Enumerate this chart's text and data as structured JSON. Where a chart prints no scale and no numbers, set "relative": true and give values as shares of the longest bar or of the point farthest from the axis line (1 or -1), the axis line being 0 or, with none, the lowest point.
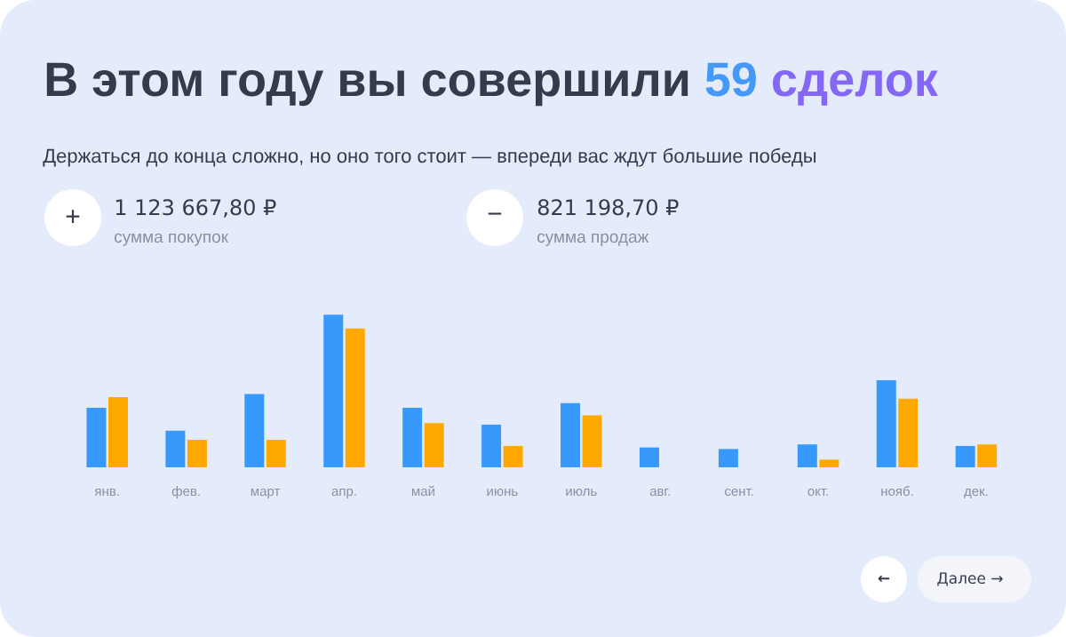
{
  "chart_data": {
    "type": "bar",
    "title": "В этом году вы совершили 59 сделок",
    "subtitle": "Держаться до конца сложно, но оно того стоит — впереди вас ждут большие победы",
    "categories": [
      "янв.",
      "фев.",
      "март",
      "апр.",
      "май",
      "июнь",
      "июль",
      "авг.",
      "сент.",
      "окт.",
      "нояб.",
      "дек."
    ],
    "series": [
      {
        "color": "#3899fc",
        "values": [
          0.39,
          0.24,
          0.48,
          1,
          0.39,
          0.28,
          0.42,
          0.13,
          0.12,
          0.15,
          0.57,
          0.14
        ]
      },
      {
        "color": "#ffa900",
        "values": [
          0.46,
          0.18,
          0.18,
          0.91,
          0.29,
          0.14,
          0.34,
          null,
          null,
          0.05,
          0.45,
          0.15
        ]
      }
    ],
    "relative": true,
    "annotations": [
      "+",
      "1 123 667,80 ₽",
      "сумма покупок",
      "−",
      "821 198,70 ₽",
      "сумма продаж",
      "←",
      "Далее →"
    ]
  }
}
